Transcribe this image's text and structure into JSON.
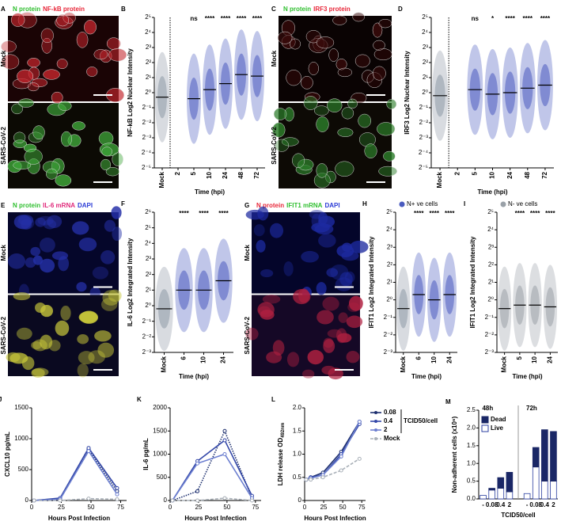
{
  "chart_data": [
    {
      "panel": "B",
      "type": "swarm",
      "ylabel": "NF-kB Log2 Nuclear Intensity",
      "xlabel": "Time (hpi)",
      "categories": [
        "Mock",
        "2",
        "5",
        "10",
        "24",
        "48",
        "72"
      ],
      "values": [
        -0.3,
        null,
        -0.4,
        0.2,
        0.6,
        1.2,
        1.1
      ],
      "annotations": [
        null,
        null,
        "ns",
        "****",
        "****",
        "****",
        "****"
      ],
      "color": "#4a5bbf",
      "mock_color": "#8e99a5",
      "divider": true,
      "ylim": [
        -5,
        5
      ],
      "yticks": [
        {
          "value": -5,
          "label": "2⁻⁵"
        },
        {
          "value": -4,
          "label": "2⁻⁴"
        },
        {
          "value": -3,
          "label": "2⁻³"
        },
        {
          "value": -2,
          "label": "2⁻²"
        },
        {
          "value": -1,
          "label": "2⁻¹"
        },
        {
          "value": 0,
          "label": "2⁰"
        },
        {
          "value": 1,
          "label": "2¹"
        },
        {
          "value": 2,
          "label": "2²"
        },
        {
          "value": 3,
          "label": "2³"
        },
        {
          "value": 4,
          "label": "2⁴"
        },
        {
          "value": 5,
          "label": "2⁵"
        }
      ]
    },
    {
      "panel": "D",
      "type": "swarm",
      "ylabel": "IRF3  Log2 Nuclear Intensity",
      "xlabel": "Time (hpi)",
      "categories": [
        "Mock",
        "2",
        "5",
        "10",
        "24",
        "48",
        "72"
      ],
      "values": [
        -0.2,
        null,
        0.2,
        -0.1,
        0.0,
        0.3,
        0.5
      ],
      "annotations": [
        null,
        null,
        "ns",
        "*",
        "****",
        "****",
        "****"
      ],
      "color": "#4a5bbf",
      "mock_color": "#8e99a5",
      "divider": true,
      "ylim": [
        -5,
        5
      ],
      "yticks": [
        {
          "value": -5,
          "label": "2⁻⁵"
        },
        {
          "value": -4,
          "label": "2⁻⁴"
        },
        {
          "value": -3,
          "label": "2⁻³"
        },
        {
          "value": -2,
          "label": "2⁻²"
        },
        {
          "value": -1,
          "label": "2⁻¹"
        },
        {
          "value": 0,
          "label": "2⁰"
        },
        {
          "value": 1,
          "label": "2¹"
        },
        {
          "value": 2,
          "label": "2²"
        },
        {
          "value": 3,
          "label": "2³"
        },
        {
          "value": 4,
          "label": "2⁴"
        },
        {
          "value": 5,
          "label": "2⁵"
        }
      ]
    },
    {
      "panel": "F",
      "type": "swarm",
      "ylabel": "IL-6 Log2 Integrated Intensity",
      "xlabel": "Time (hpi)",
      "categories": [
        "Mock",
        "6",
        "10",
        "24"
      ],
      "values": [
        -0.2,
        1.0,
        1.0,
        1.6
      ],
      "annotations": [
        null,
        "****",
        "****",
        "****"
      ],
      "color": "#4a5bbf",
      "mock_color": "#8e99a5",
      "divider": false,
      "ylim": [
        -3,
        6
      ],
      "yticks": [
        {
          "value": -3,
          "label": "2⁻³"
        },
        {
          "value": -2,
          "label": "2⁻²"
        },
        {
          "value": -1,
          "label": "2⁻¹"
        },
        {
          "value": 0,
          "label": "2⁰"
        },
        {
          "value": 1,
          "label": "2¹"
        },
        {
          "value": 2,
          "label": "2²"
        },
        {
          "value": 3,
          "label": "2³"
        },
        {
          "value": 4,
          "label": "2⁴"
        },
        {
          "value": 5,
          "label": "2⁵"
        },
        {
          "value": 6,
          "label": "2⁶"
        }
      ]
    },
    {
      "panel": "H",
      "type": "swarm",
      "ylabel": "IFIT1 Log2 Integrated Intensity",
      "xlabel": "Time (hpi)",
      "legend": "N+ ve cells",
      "categories": [
        "Mock",
        "6",
        "10",
        "24"
      ],
      "values": [
        -0.5,
        0.3,
        0.0,
        0.3
      ],
      "annotations": [
        null,
        "****",
        "****",
        "****"
      ],
      "color": "#4a5bbf",
      "mock_color": "#8e99a5",
      "divider": false,
      "ylim": [
        -3,
        5
      ],
      "yticks": [
        {
          "value": -3,
          "label": "2⁻³"
        },
        {
          "value": -2,
          "label": "2⁻²"
        },
        {
          "value": -1,
          "label": "2⁻¹"
        },
        {
          "value": 0,
          "label": "2⁰"
        },
        {
          "value": 1,
          "label": "2¹"
        },
        {
          "value": 2,
          "label": "2²"
        },
        {
          "value": 3,
          "label": "2³"
        },
        {
          "value": 4,
          "label": "2⁴"
        },
        {
          "value": 5,
          "label": "2⁵"
        }
      ]
    },
    {
      "panel": "I",
      "type": "swarm",
      "ylabel": "IFIT1 Log2 Integrated Intensity",
      "xlabel": "Time (hpi)",
      "legend": "N- ve cells",
      "categories": [
        "Mock",
        "5",
        "10",
        "24"
      ],
      "values": [
        -0.5,
        -0.3,
        -0.3,
        -0.4
      ],
      "annotations": [
        null,
        "****",
        "****",
        "****"
      ],
      "color": "#9aa1a8",
      "mock_color": "#9aa1a8",
      "divider": false,
      "ylim": [
        -3,
        5
      ],
      "yticks": [
        {
          "value": -3,
          "label": "2⁻³"
        },
        {
          "value": -2,
          "label": "2⁻²"
        },
        {
          "value": -1,
          "label": "2⁻¹"
        },
        {
          "value": 0,
          "label": "2⁰"
        },
        {
          "value": 1,
          "label": "2¹"
        },
        {
          "value": 2,
          "label": "2²"
        },
        {
          "value": 3,
          "label": "2³"
        },
        {
          "value": 4,
          "label": "2⁴"
        },
        {
          "value": 5,
          "label": "2⁵"
        }
      ]
    },
    {
      "panel": "J",
      "type": "line",
      "ylabel": "CXCL10 pg/mL",
      "xlabel": "Hours Post Infection",
      "x": [
        2,
        24,
        48,
        72
      ],
      "xlim": [
        0,
        80
      ],
      "xticks": [
        0,
        25,
        50,
        75
      ],
      "ylim": [
        0,
        1500
      ],
      "yticks": [
        0,
        500,
        1000,
        1500
      ],
      "series": [
        {
          "name": "0.08",
          "color": "#1d2f6f",
          "style": "dotted",
          "values": [
            0,
            30,
            830,
            150
          ]
        },
        {
          "name": "0.4",
          "color": "#3347a8",
          "style": "solid",
          "values": [
            0,
            40,
            850,
            200
          ]
        },
        {
          "name": "2",
          "color": "#6c7fd0",
          "style": "solid",
          "values": [
            0,
            20,
            800,
            100
          ]
        },
        {
          "name": "Mock",
          "color": "#a9b0b8",
          "style": "dashed",
          "values": [
            0,
            0,
            30,
            20
          ]
        }
      ]
    },
    {
      "panel": "K",
      "type": "line",
      "ylabel": "IL-6 pg/mL",
      "xlabel": "Hours Post Infection",
      "x": [
        2,
        24,
        48,
        72
      ],
      "xlim": [
        0,
        80
      ],
      "xticks": [
        0,
        25,
        50,
        75
      ],
      "ylim": [
        0,
        2000
      ],
      "yticks": [
        0,
        500,
        1000,
        1500,
        2000
      ],
      "series": [
        {
          "name": "0.08",
          "color": "#1d2f6f",
          "style": "dotted",
          "values": [
            0,
            200,
            1500,
            50
          ]
        },
        {
          "name": "0.4",
          "color": "#3347a8",
          "style": "solid",
          "values": [
            0,
            850,
            1300,
            100
          ]
        },
        {
          "name": "2",
          "color": "#6c7fd0",
          "style": "solid",
          "values": [
            0,
            800,
            1000,
            50
          ]
        },
        {
          "name": "Mock",
          "color": "#a9b0b8",
          "style": "dashed",
          "values": [
            0,
            0,
            50,
            0
          ]
        }
      ]
    },
    {
      "panel": "L",
      "type": "line",
      "ylabel": "LDH release OD",
      "ylabel_sub": "492nm",
      "xlabel": "Hours Post Infection",
      "legend": "right",
      "legend_title": "TCID50/cell",
      "x": [
        2,
        8,
        24,
        48,
        72
      ],
      "xlim": [
        0,
        80
      ],
      "xticks": [
        0,
        25,
        50,
        75
      ],
      "ylim": [
        0,
        2
      ],
      "yticks": [
        0,
        0.5,
        {
          "value": 1,
          "label": "1.0"
        },
        1.5,
        {
          "value": 2,
          "label": "2.0"
        }
      ],
      "series": [
        {
          "name": "0.08",
          "color": "#1d2f6f",
          "style": "solid",
          "values": [
            0.45,
            0.5,
            0.6,
            1.05,
            1.7
          ]
        },
        {
          "name": "0.4",
          "color": "#3347a8",
          "style": "solid",
          "values": [
            0.45,
            0.5,
            0.55,
            1.0,
            1.65
          ]
        },
        {
          "name": "2",
          "color": "#6c7fd0",
          "style": "solid",
          "values": [
            0.45,
            0.48,
            0.55,
            0.95,
            1.7
          ]
        },
        {
          "name": "Mock",
          "color": "#a9b0b8",
          "style": "dashed",
          "values": [
            0.45,
            0.45,
            0.5,
            0.65,
            0.9
          ]
        }
      ]
    },
    {
      "panel": "M",
      "type": "stacked_bar",
      "ylabel": "Non-adherent cells (x10⁶)",
      "xlabel": "TCID50/cell",
      "legend": "top-left",
      "groups": [
        "48h",
        "72h"
      ],
      "categories": [
        "-",
        "0.08",
        "0.4",
        "2",
        "-",
        "0.08",
        "0.4",
        "2"
      ],
      "ylim": [
        0,
        2.5
      ],
      "yticks": [
        {
          "value": 0,
          "label": "0.0"
        },
        0.5,
        {
          "value": 1,
          "label": "1.0"
        },
        1.5,
        {
          "value": 2,
          "label": "2.0"
        },
        2.5
      ],
      "series": [
        {
          "name": "Live",
          "color": "#ffffff",
          "stroke": "#2b3fa0",
          "values": [
            0.1,
            0.25,
            0.3,
            0.2,
            0.15,
            0.9,
            0.5,
            0.5
          ]
        },
        {
          "name": "Dead",
          "color": "#1a2766",
          "stroke": "#1a2766",
          "values": [
            0,
            0.05,
            0.3,
            0.55,
            0,
            0.55,
            1.45,
            1.4
          ]
        }
      ]
    }
  ],
  "micrographs": [
    {
      "panel": "A",
      "stains": [
        {
          "text": "N protein",
          "color": "#2fbf2f"
        },
        {
          "text": "NF-kB protein",
          "color": "#e8283a"
        }
      ],
      "rows": [
        "Mock",
        "SARS-CoV-2"
      ]
    },
    {
      "panel": "C",
      "stains": [
        {
          "text": "N protein",
          "color": "#2fbf2f"
        },
        {
          "text": "IRF3 protein",
          "color": "#e8283a"
        }
      ],
      "rows": [
        "Mock",
        "SARS-CoV-2"
      ]
    },
    {
      "panel": "E",
      "stains": [
        {
          "text": "N protein",
          "color": "#2fbf2f"
        },
        {
          "text": "IL-6 mRNA",
          "color": "#e0287a"
        },
        {
          "text": "DAPI",
          "color": "#2a3bd6"
        }
      ],
      "rows": [
        "Mock",
        "SARS-CoV-2"
      ]
    },
    {
      "panel": "G",
      "stains": [
        {
          "text": "N protein",
          "color": "#e8283a"
        },
        {
          "text": "IFIT1 mRNA",
          "color": "#2fbf2f"
        },
        {
          "text": "DAPI",
          "color": "#2a3bd6"
        }
      ],
      "rows": [
        "Mock",
        "SARS-CoV-2"
      ]
    }
  ]
}
